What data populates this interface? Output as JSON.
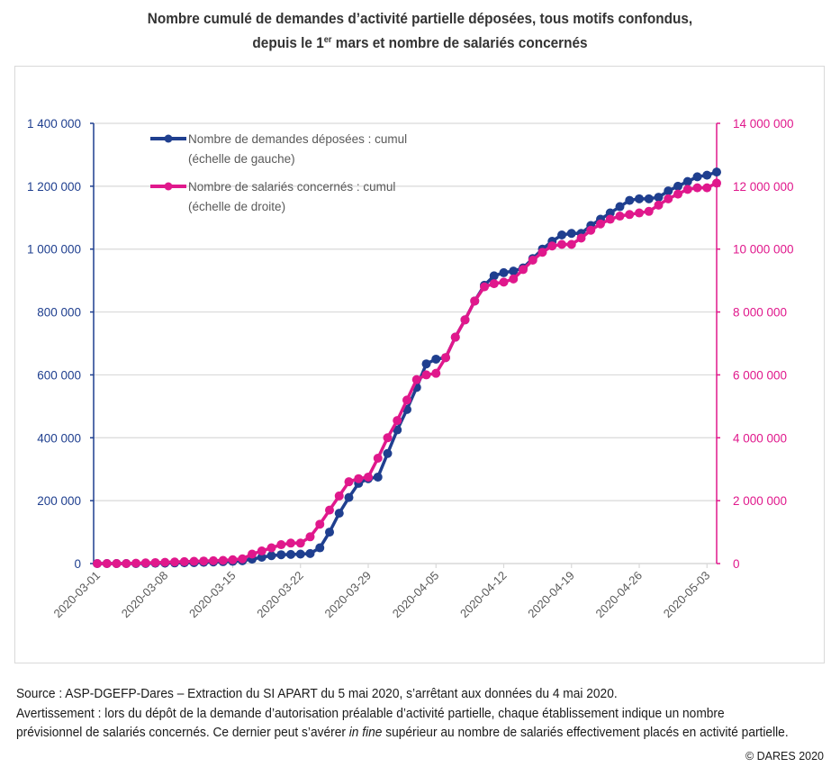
{
  "title": {
    "line1": "Nombre cumulé de demandes d’activité partielle déposées, tous motifs confondus,",
    "line2_prefix": "depuis le 1",
    "line2_sup": "er",
    "line2_suffix": " mars et nombre de salariés concernés"
  },
  "footer": {
    "source": "Source : ASP-DGEFP-Dares – Extraction du SI APART du 5 mai 2020, s’arrêtant aux données du 4 mai 2020.",
    "warning_part1": "Avertissement : lors du dépôt de la demande d’autorisation préalable d’activité partielle, chaque établissement indique un nombre prévisionnel de salariés concernés. Ce dernier peut s’avérer ",
    "warning_italic": "in fine",
    "warning_part2": " supérieur au nombre de salariés effectivement placés en activité partielle.",
    "copyright": "© DARES 2020"
  },
  "colors": {
    "series_demandes": "#1f3f8f",
    "series_salaries": "#e0188c",
    "gridline": "#d9d9d9",
    "axis_x_label": "#595959"
  },
  "chart_data": {
    "type": "line",
    "title": "Nombre cumulé de demandes d’activité partielle déposées, tous motifs confondus, depuis le 1er mars et nombre de salariés concernés",
    "xlabel": "",
    "ylabel_left": "",
    "ylabel_right": "",
    "x_tick_labels": [
      "2020-03-01",
      "2020-03-08",
      "2020-03-15",
      "2020-03-22",
      "2020-03-29",
      "2020-04-05",
      "2020-04-12",
      "2020-04-19",
      "2020-04-26",
      "2020-05-03"
    ],
    "x_start": "2020-03-01",
    "x_end": "2020-05-04",
    "ylim_left": [
      0,
      1400000
    ],
    "yticks_left": [
      0,
      200000,
      400000,
      600000,
      800000,
      1000000,
      1200000,
      1400000
    ],
    "ytick_labels_left": [
      "0",
      "200 000",
      "400 000",
      "600 000",
      "800 000",
      "1 000 000",
      "1 200 000",
      "1 400 000"
    ],
    "ylim_right": [
      0,
      14000000
    ],
    "yticks_right": [
      0,
      2000000,
      4000000,
      6000000,
      8000000,
      10000000,
      12000000,
      14000000
    ],
    "ytick_labels_right": [
      "0",
      "2 000 000",
      "4 000 000",
      "6 000 000",
      "8 000 000",
      "10 000 000",
      "12 000 000",
      "14 000 000"
    ],
    "grid": true,
    "legend_position": "top-left",
    "series": [
      {
        "name": "Nombre de demandes déposées : cumul",
        "name_line2": "(échelle de gauche)",
        "axis": "left",
        "values": [
          0,
          0,
          0,
          0,
          0,
          500,
          1000,
          1500,
          2000,
          2500,
          3000,
          4000,
          5000,
          6000,
          7000,
          9000,
          14000,
          20000,
          25000,
          28000,
          29000,
          30000,
          32000,
          50000,
          100000,
          160000,
          210000,
          255000,
          270000,
          275000,
          350000,
          425000,
          490000,
          560000,
          635000,
          650000,
          655000,
          720000,
          775000,
          835000,
          885000,
          915000,
          925000,
          930000,
          940000,
          970000,
          1000000,
          1025000,
          1045000,
          1050000,
          1050000,
          1075000,
          1095000,
          1115000,
          1135000,
          1155000,
          1160000,
          1160000,
          1165000,
          1185000,
          1200000,
          1215000,
          1230000,
          1235000,
          1245000
        ]
      },
      {
        "name": "Nombre de salariés concernés : cumul",
        "name_line2": "(échelle de droite)",
        "axis": "right",
        "values": [
          0,
          0,
          0,
          0,
          10000,
          20000,
          30000,
          40000,
          50000,
          60000,
          70000,
          80000,
          90000,
          100000,
          120000,
          150000,
          300000,
          400000,
          500000,
          600000,
          650000,
          650000,
          850000,
          1250000,
          1700000,
          2150000,
          2600000,
          2700000,
          2750000,
          3350000,
          4000000,
          4550000,
          5200000,
          5850000,
          6000000,
          6050000,
          6550000,
          7200000,
          7750000,
          8350000,
          8800000,
          8900000,
          8950000,
          9050000,
          9350000,
          9650000,
          9900000,
          10100000,
          10150000,
          10150000,
          10350000,
          10600000,
          10800000,
          10950000,
          11050000,
          11100000,
          11150000,
          11200000,
          11400000,
          11600000,
          11750000,
          11900000,
          11950000,
          11950000,
          12100000
        ]
      }
    ]
  }
}
